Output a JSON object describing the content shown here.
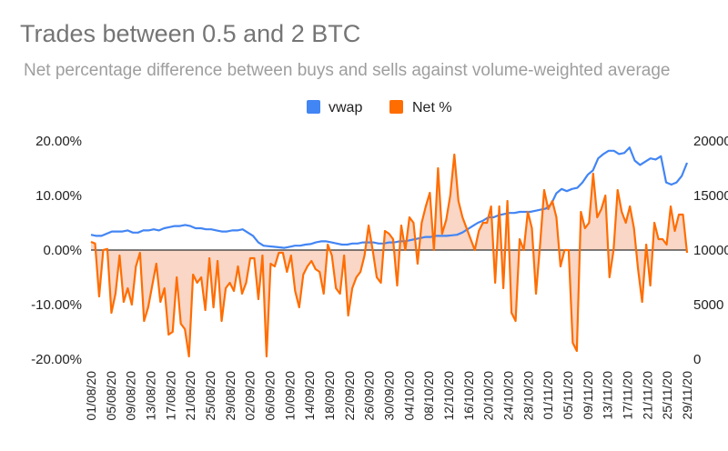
{
  "chart_data": {
    "type": "line",
    "title": "Trades between 0.5 and 2 BTC",
    "subtitle": "Net percentage difference between buys and sells against volume-weighted average",
    "legend": {
      "position": "top",
      "entries": [
        "vwap",
        "Net %"
      ]
    },
    "colors": {
      "vwap": "#4285f4",
      "net": "#ff6d01",
      "net_fill": "#f8cfbb",
      "zero_line": "#333333"
    },
    "y_left": {
      "label": "",
      "lim": [
        -0.2,
        0.2
      ],
      "ticks": [
        "-20.00%",
        "-10.00%",
        "0.00%",
        "10.00%",
        "20.00%"
      ]
    },
    "y_right": {
      "label": "",
      "lim": [
        0,
        20000
      ],
      "ticks": [
        "0",
        "5000",
        "10000",
        "15000",
        "20000"
      ]
    },
    "x_ticks": [
      "01/08/20",
      "05/08/20",
      "09/08/20",
      "13/08/20",
      "17/08/20",
      "21/08/20",
      "25/08/20",
      "29/08/20",
      "02/09/20",
      "06/09/20",
      "10/09/20",
      "14/09/20",
      "18/09/20",
      "22/09/20",
      "26/09/20",
      "30/09/20",
      "04/10/20",
      "08/10/20",
      "12/10/20",
      "16/10/20",
      "20/10/20",
      "24/10/20",
      "28/10/20",
      "01/11/20",
      "05/11/20",
      "09/11/20",
      "13/11/20",
      "17/11/20",
      "21/11/20",
      "25/11/20",
      "29/11/20"
    ],
    "series": [
      {
        "name": "vwap",
        "axis": "right",
        "values": [
          11400,
          11300,
          11300,
          11500,
          11700,
          11700,
          11700,
          11800,
          11600,
          11600,
          11800,
          11800,
          11900,
          11800,
          12000,
          12100,
          12200,
          12200,
          12300,
          12200,
          12000,
          12000,
          11900,
          11900,
          11800,
          11700,
          11700,
          11800,
          11800,
          11900,
          11600,
          11300,
          10700,
          10400,
          10350,
          10300,
          10250,
          10200,
          10300,
          10400,
          10400,
          10500,
          10550,
          10700,
          10800,
          10800,
          10700,
          10600,
          10500,
          10500,
          10600,
          10600,
          10700,
          10700,
          10700,
          10600,
          10600,
          10700,
          10700,
          10800,
          10800,
          10900,
          11000,
          11100,
          11200,
          11200,
          11300,
          11300,
          11300,
          11350,
          11400,
          11600,
          11900,
          12200,
          12500,
          12700,
          13000,
          13000,
          13200,
          13300,
          13400,
          13400,
          13500,
          13500,
          13500,
          13600,
          13700,
          13800,
          14200,
          15200,
          15600,
          15400,
          15600,
          15700,
          16200,
          16900,
          17300,
          18400,
          18800,
          19100,
          19100,
          18800,
          18900,
          19400,
          18200,
          17800,
          18100,
          18400,
          18300,
          18600,
          16200,
          16000,
          16200,
          16800,
          18000
        ]
      },
      {
        "name": "Net %",
        "axis": "left",
        "values": [
          0.015,
          0.012,
          -0.085,
          0.0,
          0.002,
          -0.115,
          -0.08,
          -0.01,
          -0.095,
          -0.07,
          -0.1,
          -0.03,
          -0.005,
          -0.13,
          -0.105,
          -0.065,
          -0.025,
          -0.095,
          -0.07,
          -0.155,
          -0.15,
          -0.05,
          -0.135,
          -0.145,
          -0.195,
          -0.045,
          -0.06,
          -0.05,
          -0.11,
          -0.015,
          -0.105,
          -0.02,
          -0.13,
          -0.07,
          -0.06,
          -0.075,
          -0.03,
          -0.08,
          -0.06,
          -0.015,
          -0.015,
          -0.09,
          -0.01,
          -0.195,
          -0.025,
          -0.03,
          -0.005,
          -0.005,
          -0.04,
          -0.01,
          -0.075,
          -0.105,
          -0.045,
          -0.03,
          -0.02,
          -0.035,
          -0.04,
          -0.08,
          0.01,
          -0.01,
          -0.07,
          -0.08,
          -0.01,
          -0.12,
          -0.07,
          -0.05,
          -0.04,
          -0.01,
          0.045,
          0.0,
          -0.05,
          -0.06,
          0.035,
          0.03,
          0.02,
          -0.065,
          0.045,
          0.0,
          0.06,
          0.05,
          -0.025,
          0.05,
          0.08,
          0.105,
          0.0,
          0.15,
          0.03,
          0.055,
          0.1,
          0.175,
          0.09,
          0.06,
          0.04,
          0.02,
          0.0,
          0.035,
          0.05,
          0.05,
          0.08,
          -0.06,
          0.08,
          -0.07,
          0.09,
          -0.115,
          -0.13,
          0.02,
          0.0,
          0.07,
          0.04,
          -0.08,
          0.01,
          0.11,
          0.075,
          0.09,
          0.06,
          -0.03,
          0.0,
          0.0,
          -0.17,
          -0.185,
          0.07,
          0.04,
          0.05,
          0.14,
          0.06,
          0.075,
          0.1,
          -0.05,
          0.0,
          0.11,
          0.07,
          0.05,
          0.08,
          0.04,
          -0.035,
          -0.095,
          0.01,
          -0.065,
          0.05,
          0.02,
          0.02,
          0.01,
          0.08,
          0.035,
          0.065,
          0.065,
          -0.005
        ]
      }
    ]
  }
}
